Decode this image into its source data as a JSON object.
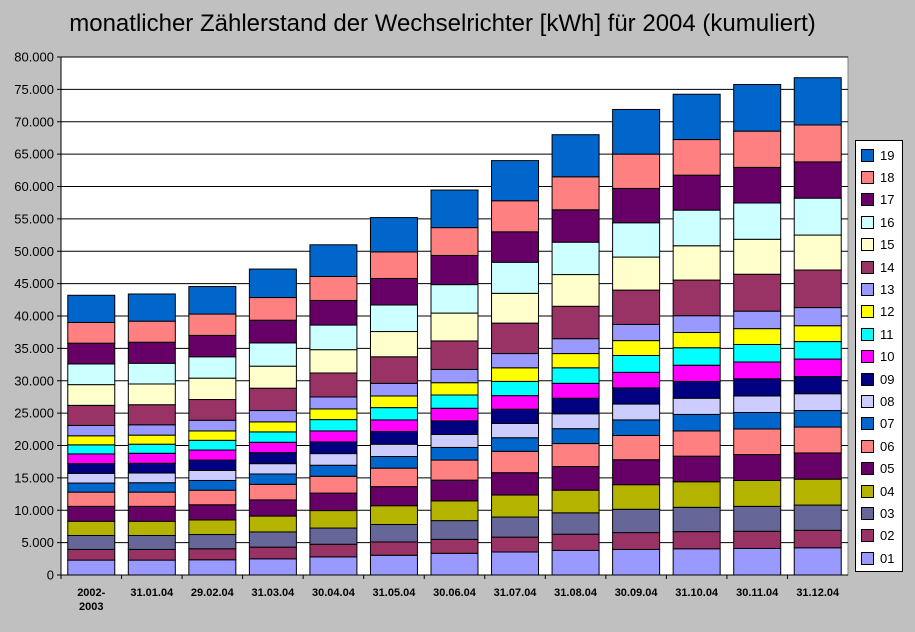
{
  "chart_data": {
    "type": "bar",
    "stacked": true,
    "title": "monatlicher Zählerstand der Wechselrichter [kWh] für 2004 (kumuliert)",
    "xlabel": "",
    "ylabel": "",
    "ylim": [
      0,
      80000
    ],
    "yticks": [
      "0",
      "5.000",
      "10.000",
      "15.000",
      "20.000",
      "25.000",
      "30.000",
      "35.000",
      "40.000",
      "45.000",
      "50.000",
      "55.000",
      "60.000",
      "65.000",
      "70.000",
      "75.000",
      "80.000"
    ],
    "grid": true,
    "legend_position": "right",
    "categories": [
      [
        "2002-",
        "2003"
      ],
      [
        "31.01.04"
      ],
      [
        "29.02.04"
      ],
      [
        "31.03.04"
      ],
      [
        "30.04.04"
      ],
      [
        "31.05.04"
      ],
      [
        "30.06.04"
      ],
      [
        "31.07.04"
      ],
      [
        "31.08.04"
      ],
      [
        "30.09.04"
      ],
      [
        "31.10.04"
      ],
      [
        "30.11.04"
      ],
      [
        "31.12.04"
      ]
    ],
    "series": [
      {
        "name": "01",
        "color": "#9999ff",
        "values": [
          2300,
          2300,
          2350,
          2500,
          2800,
          3050,
          3350,
          3550,
          3800,
          3950,
          4050,
          4100,
          4200
        ]
      },
      {
        "name": "02",
        "color": "#993366",
        "values": [
          1650,
          1650,
          1700,
          1800,
          1950,
          2050,
          2150,
          2300,
          2500,
          2600,
          2650,
          2650,
          2700
        ]
      },
      {
        "name": "03",
        "color": "#666699",
        "values": [
          2150,
          2150,
          2200,
          2350,
          2500,
          2700,
          2900,
          3100,
          3300,
          3600,
          3750,
          3850,
          3900
        ]
      },
      {
        "name": "04",
        "color": "#b3b300",
        "values": [
          2200,
          2200,
          2250,
          2450,
          2700,
          2900,
          3050,
          3400,
          3500,
          3800,
          3950,
          4000,
          4000
        ]
      },
      {
        "name": "05",
        "color": "#660066",
        "values": [
          2300,
          2300,
          2350,
          2500,
          2700,
          2950,
          3200,
          3450,
          3650,
          3850,
          3950,
          4000,
          4050
        ]
      },
      {
        "name": "06",
        "color": "#ff8080",
        "values": [
          2200,
          2200,
          2250,
          2400,
          2600,
          2850,
          3100,
          3300,
          3550,
          3750,
          3900,
          3950,
          4000
        ]
      },
      {
        "name": "07",
        "color": "#0066cc",
        "values": [
          1400,
          1450,
          1500,
          1600,
          1700,
          1800,
          1950,
          2100,
          2300,
          2400,
          2550,
          2550,
          2550
        ]
      },
      {
        "name": "08",
        "color": "#ccccff",
        "values": [
          1500,
          1500,
          1550,
          1600,
          1800,
          1900,
          2000,
          2200,
          2300,
          2450,
          2500,
          2550,
          2600
        ]
      },
      {
        "name": "09",
        "color": "#000080",
        "values": [
          1500,
          1500,
          1600,
          1700,
          1800,
          1950,
          2100,
          2200,
          2400,
          2500,
          2600,
          2650,
          2650
        ]
      },
      {
        "name": "10",
        "color": "#ff00ff",
        "values": [
          1500,
          1550,
          1550,
          1600,
          1700,
          1800,
          1950,
          2100,
          2300,
          2400,
          2500,
          2600,
          2700
        ]
      },
      {
        "name": "11",
        "color": "#00ffff",
        "values": [
          1400,
          1400,
          1500,
          1600,
          1750,
          1900,
          2050,
          2200,
          2400,
          2600,
          2700,
          2700,
          2700
        ]
      },
      {
        "name": "12",
        "color": "#ffff00",
        "values": [
          1400,
          1400,
          1450,
          1550,
          1650,
          1800,
          1900,
          2100,
          2200,
          2300,
          2350,
          2450,
          2450
        ]
      },
      {
        "name": "13",
        "color": "#9999ff",
        "values": [
          1600,
          1600,
          1650,
          1750,
          1850,
          1950,
          2050,
          2200,
          2300,
          2500,
          2600,
          2700,
          2800
        ]
      },
      {
        "name": "14",
        "color": "#993366",
        "values": [
          3100,
          3100,
          3200,
          3450,
          3700,
          4100,
          4400,
          4700,
          5000,
          5300,
          5500,
          5700,
          5800
        ]
      },
      {
        "name": "15",
        "color": "#ffffcc",
        "values": [
          3200,
          3200,
          3300,
          3400,
          3600,
          3900,
          4300,
          4600,
          4900,
          5100,
          5300,
          5400,
          5400
        ]
      },
      {
        "name": "16",
        "color": "#ccffff",
        "values": [
          3200,
          3200,
          3300,
          3600,
          3800,
          4100,
          4400,
          4800,
          5000,
          5300,
          5500,
          5600,
          5700
        ]
      },
      {
        "name": "17",
        "color": "#660066",
        "values": [
          3200,
          3250,
          3300,
          3500,
          3800,
          4100,
          4500,
          4700,
          5000,
          5300,
          5400,
          5500,
          5600
        ]
      },
      {
        "name": "18",
        "color": "#ff8080",
        "values": [
          3200,
          3250,
          3300,
          3500,
          3700,
          4100,
          4300,
          4800,
          5100,
          5300,
          5500,
          5600,
          5700
        ]
      },
      {
        "name": "19",
        "color": "#0066cc",
        "values": [
          4200,
          4200,
          4250,
          4400,
          4900,
          5300,
          5800,
          6200,
          6500,
          6900,
          7000,
          7200,
          7300
        ]
      }
    ]
  }
}
